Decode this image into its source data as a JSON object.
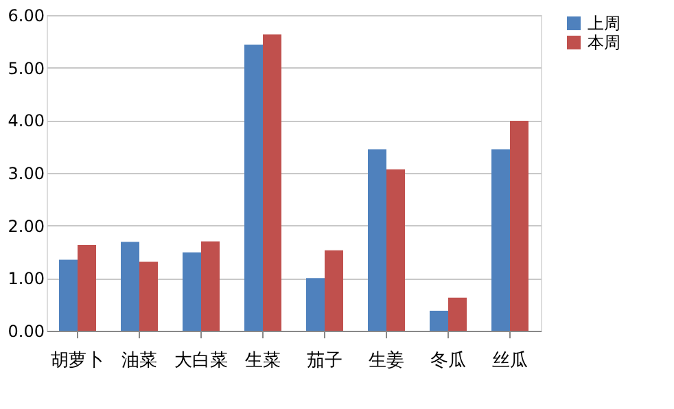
{
  "chart_data": {
    "type": "bar",
    "categories": [
      "胡萝卜",
      "油菜",
      "大白菜",
      "生菜",
      "茄子",
      "生姜",
      "冬瓜",
      "丝瓜"
    ],
    "series": [
      {
        "name": "上周",
        "color": "#4f81bd",
        "values": [
          1.35,
          1.69,
          1.49,
          5.44,
          1.0,
          3.45,
          0.38,
          3.45
        ]
      },
      {
        "name": "本周",
        "color": "#c0504d",
        "values": [
          1.63,
          1.31,
          1.7,
          5.63,
          1.53,
          3.07,
          0.63,
          3.99
        ]
      }
    ],
    "ylim": [
      0,
      6
    ],
    "yticks": [
      {
        "value": 0,
        "label": "0.00"
      },
      {
        "value": 1,
        "label": "1.00"
      },
      {
        "value": 2,
        "label": "2.00"
      },
      {
        "value": 3,
        "label": "3.00"
      },
      {
        "value": 4,
        "label": "4.00"
      },
      {
        "value": 5,
        "label": "5.00"
      },
      {
        "value": 6,
        "label": "6.00"
      }
    ],
    "grid": "y",
    "legend": "right"
  }
}
